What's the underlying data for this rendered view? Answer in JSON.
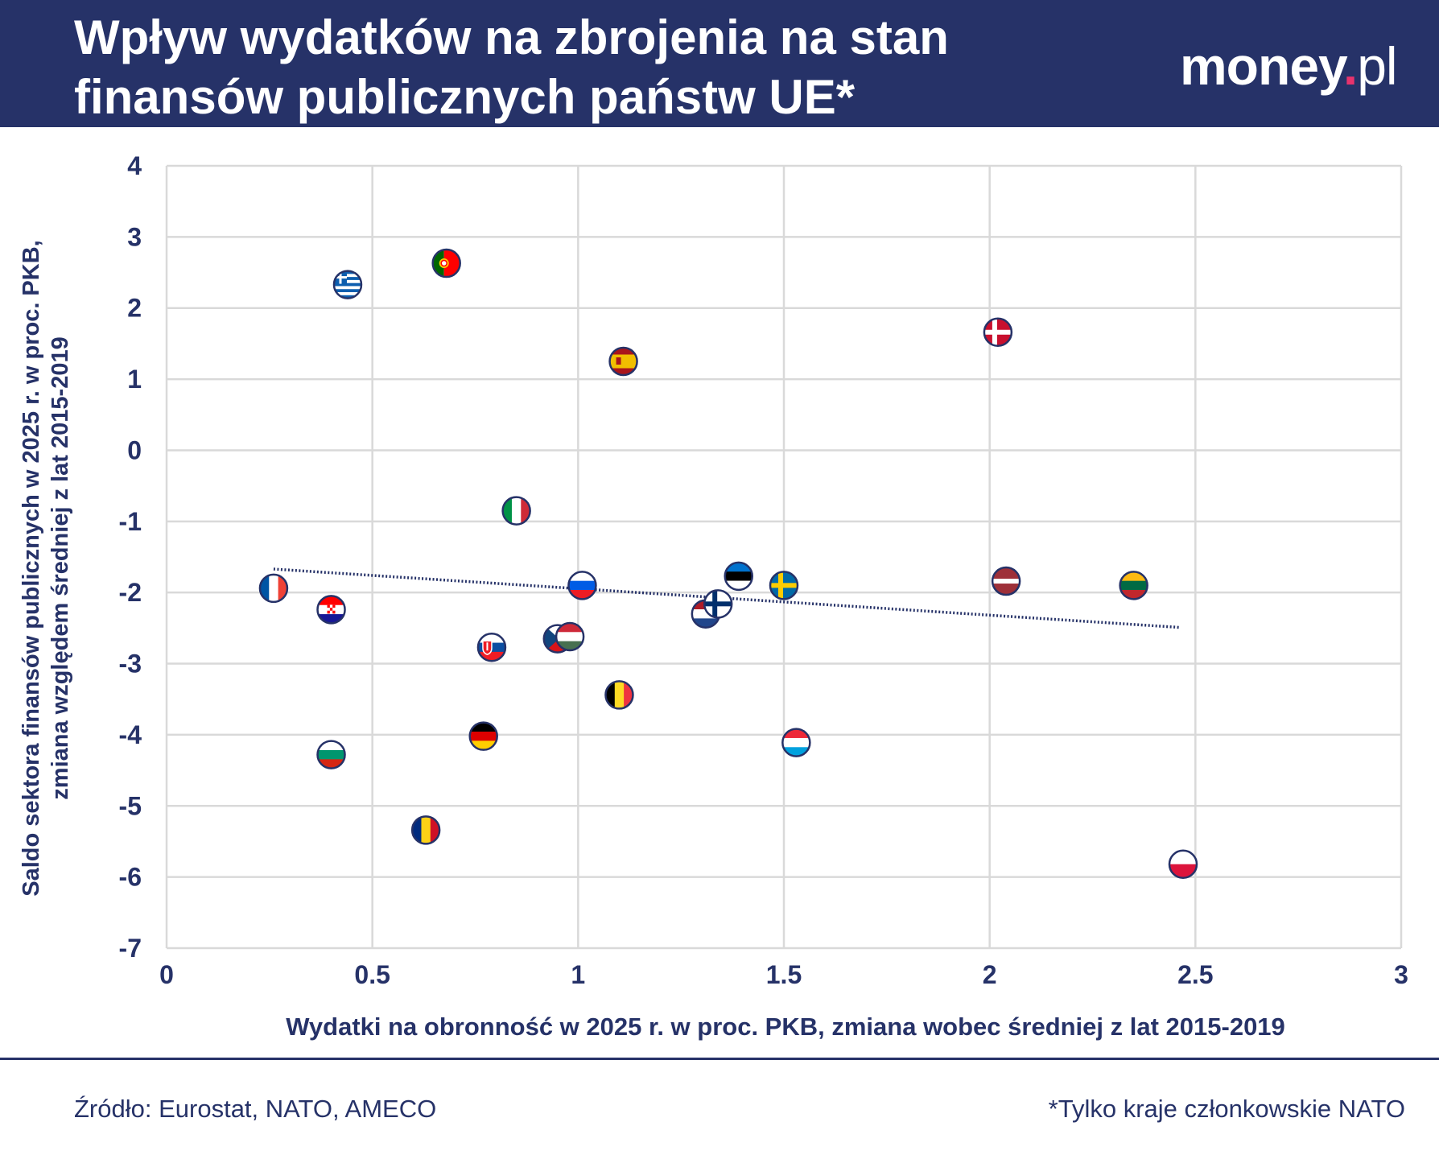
{
  "header": {
    "title_line1": "Wpływ wydatków na zbrojenia na stan",
    "title_line2": "finansów publicznych państw UE*",
    "logo_main": "money",
    "logo_dot": ".",
    "logo_suffix": "pl"
  },
  "colors": {
    "navy": "#263268",
    "grid": "#d9d9d9",
    "trendline": "#263268",
    "logo_dot": "#e8336d"
  },
  "chart_data": {
    "type": "scatter",
    "title": "",
    "xlabel": "Wydatki na obronność w 2025 r. w proc. PKB, zmiana wobec średniej z lat 2015-2019",
    "ylabel_line1": "Saldo sektora finansów publicznych w 2025 r. w proc. PKB,",
    "ylabel_line2": "zmiana względem średniej z lat 2015-2019",
    "xlim": [
      0,
      3
    ],
    "ylim": [
      -7,
      4
    ],
    "xticks": [
      "0",
      "0.5",
      "1",
      "1.5",
      "2",
      "2.5",
      "3"
    ],
    "yticks": [
      "4",
      "3",
      "2",
      "1",
      "0",
      "-1",
      "-2",
      "-3",
      "-4",
      "-5",
      "-6",
      "-7"
    ],
    "grid": true,
    "trendline": {
      "x": [
        0.26,
        2.46
      ],
      "y": [
        -1.67,
        -2.49
      ],
      "style": "dotted"
    },
    "points": [
      {
        "country": "France",
        "flag": "france-flag-icon",
        "x": 0.26,
        "y": -1.94
      },
      {
        "country": "Croatia",
        "flag": "croatia-flag-icon",
        "x": 0.4,
        "y": -2.24
      },
      {
        "country": "Bulgaria",
        "flag": "bulgaria-flag-icon",
        "x": 0.4,
        "y": -4.28
      },
      {
        "country": "Greece",
        "flag": "greece-flag-icon",
        "x": 0.44,
        "y": 2.33
      },
      {
        "country": "Romania",
        "flag": "romania-flag-icon",
        "x": 0.63,
        "y": -5.34
      },
      {
        "country": "Portugal",
        "flag": "portugal-flag-icon",
        "x": 0.68,
        "y": 2.63
      },
      {
        "country": "Germany",
        "flag": "germany-flag-icon",
        "x": 0.77,
        "y": -4.02
      },
      {
        "country": "Slovakia",
        "flag": "slovakia-flag-icon",
        "x": 0.79,
        "y": -2.77
      },
      {
        "country": "Italy",
        "flag": "italy-flag-icon",
        "x": 0.85,
        "y": -0.85
      },
      {
        "country": "Czechia",
        "flag": "czechia-flag-icon",
        "x": 0.95,
        "y": -2.65
      },
      {
        "country": "Hungary",
        "flag": "hungary-flag-icon",
        "x": 0.98,
        "y": -2.62
      },
      {
        "country": "Slovenia",
        "flag": "slovenia-flag-icon",
        "x": 1.01,
        "y": -1.9
      },
      {
        "country": "Belgium",
        "flag": "belgium-flag-icon",
        "x": 1.1,
        "y": -3.44
      },
      {
        "country": "Spain",
        "flag": "spain-flag-icon",
        "x": 1.11,
        "y": 1.25
      },
      {
        "country": "Netherlands",
        "flag": "netherlands-flag-icon",
        "x": 1.31,
        "y": -2.3
      },
      {
        "country": "Finland",
        "flag": "finland-flag-icon",
        "x": 1.34,
        "y": -2.16
      },
      {
        "country": "Estonia",
        "flag": "estonia-flag-icon",
        "x": 1.39,
        "y": -1.77
      },
      {
        "country": "Sweden",
        "flag": "sweden-flag-icon",
        "x": 1.5,
        "y": -1.9
      },
      {
        "country": "Luxembourg",
        "flag": "luxembourg-flag-icon",
        "x": 1.53,
        "y": -4.11
      },
      {
        "country": "Denmark",
        "flag": "denmark-flag-icon",
        "x": 2.02,
        "y": 1.66
      },
      {
        "country": "Latvia",
        "flag": "latvia-flag-icon",
        "x": 2.04,
        "y": -1.84
      },
      {
        "country": "Lithuania",
        "flag": "lithuania-flag-icon",
        "x": 2.35,
        "y": -1.9
      },
      {
        "country": "Poland",
        "flag": "poland-flag-icon",
        "x": 2.47,
        "y": -5.82
      }
    ]
  },
  "footer": {
    "source": "Źródło: Eurostat, NATO, AMECO",
    "note": "*Tylko kraje członkowskie NATO"
  }
}
